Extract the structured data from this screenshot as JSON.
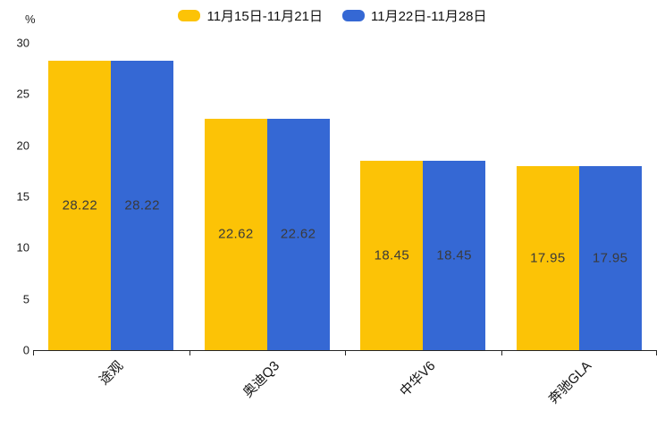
{
  "chart_data": {
    "type": "bar",
    "title": "",
    "unit_label": "%",
    "categories": [
      "途观",
      "奥迪Q3",
      "中华V6",
      "奔驰GLA"
    ],
    "series": [
      {
        "name": "11月15日-11月21日",
        "color": "#fcc306",
        "values": [
          28.22,
          22.62,
          18.45,
          17.95
        ]
      },
      {
        "name": "11月22日-11月28日",
        "color": "#3568d4",
        "values": [
          28.22,
          22.62,
          18.45,
          17.95
        ]
      }
    ],
    "ylim": [
      0,
      30
    ],
    "y_ticks": [
      30,
      25,
      20,
      15,
      10,
      5,
      0
    ],
    "grid": false,
    "legend_position": "top",
    "value_labels_shown": true,
    "value_label_format": "2-decimals"
  },
  "colors": {
    "series_yellow": "#fcc306",
    "series_blue": "#3568d4",
    "axis": "#262626",
    "value_text": "#3a3a3a"
  }
}
